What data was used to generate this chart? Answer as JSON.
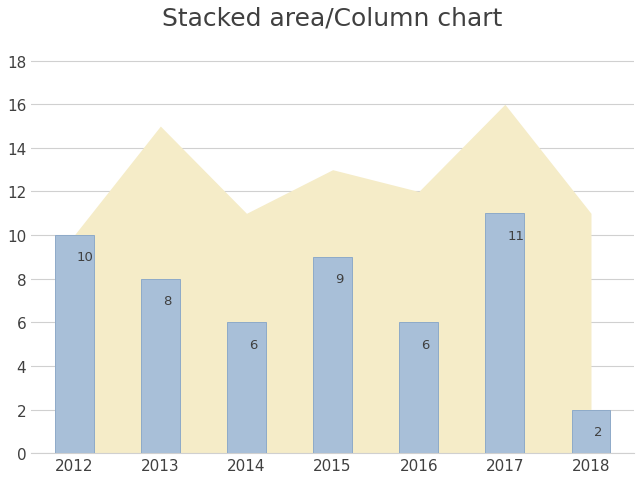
{
  "title": "Stacked area/Column chart",
  "years": [
    2012,
    2013,
    2014,
    2015,
    2016,
    2017,
    2018
  ],
  "bar_values": [
    10,
    8,
    6,
    9,
    6,
    11,
    2
  ],
  "area_values": [
    10,
    15,
    11,
    13,
    12,
    16,
    11
  ],
  "bar_color": "#a8bfd8",
  "bar_edgecolor": "#8eaac8",
  "area_color": "#f5ecc8",
  "area_edgecolor": "#ddd09a",
  "background_color": "#ffffff",
  "title_fontsize": 18,
  "label_fontsize": 9.5,
  "ylim": [
    0,
    19
  ],
  "yticks": [
    0,
    2,
    4,
    6,
    8,
    10,
    12,
    14,
    16,
    18
  ],
  "bar_width": 0.45,
  "grid_color": "#d0d0d0",
  "text_color": "#404040",
  "tick_fontsize": 11
}
